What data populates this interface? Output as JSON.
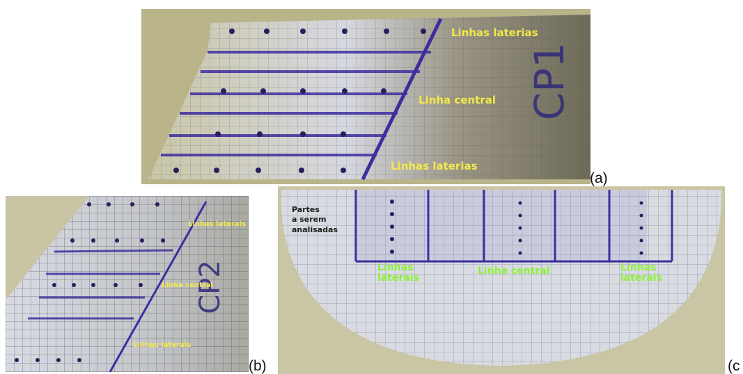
{
  "panels": {
    "a": {
      "caption": "(a)",
      "code": "CP1",
      "labels": {
        "top": "Linhas laterias",
        "center": "Linha central",
        "bottom": "Linhas laterias"
      }
    },
    "b": {
      "caption": "(b)",
      "code": "CP2",
      "labels": {
        "top": "Linhas laterais",
        "center": "Linha central",
        "bottom": "Linhas laterais"
      }
    },
    "c": {
      "caption": "(c",
      "labels": {
        "parts_line1": "Partes",
        "parts_line2": "a serem",
        "parts_line3": "analisadas",
        "left_line1": "Linhas",
        "left_line2": "laterais",
        "center": "Linha central",
        "right_line1": "Linhas",
        "right_line2": "laterais"
      }
    }
  },
  "colors": {
    "label_green": "#8ef03a",
    "label_yellow": "#f3e94a",
    "ink_blue": "#3a2aa0"
  }
}
